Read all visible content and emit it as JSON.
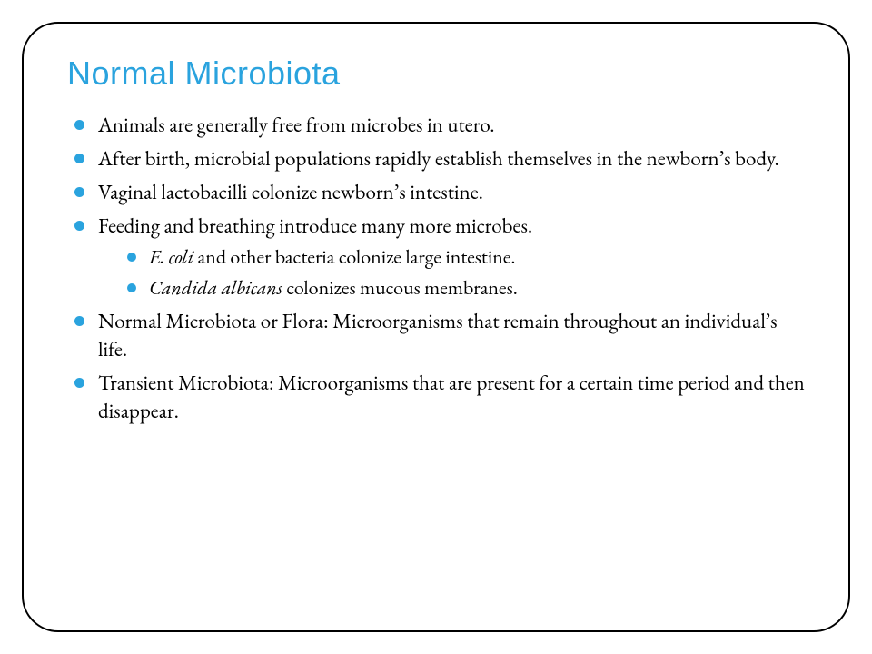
{
  "colors": {
    "accent": "#2aa3de",
    "text": "#000000",
    "border": "#000000",
    "background": "#ffffff"
  },
  "typography": {
    "title_fontsize": 36,
    "title_font": "Segoe UI, sans-serif",
    "body_fontsize": 23,
    "sub_fontsize": 22,
    "body_font": "Garamond, serif"
  },
  "layout": {
    "border_radius": 40,
    "frame_margin": 24,
    "bullet_size": 11
  },
  "slide": {
    "title": "Normal Microbiota",
    "bullets": {
      "b0": "Animals are generally free from microbes in utero.",
      "b1": "After birth, microbial populations rapidly establish themselves in the newborn’s body.",
      "b2": "Vaginal lactobacilli colonize newborn’s intestine.",
      "b3": "Feeding and breathing introduce many more microbes.",
      "b4": "Normal Microbiota or Flora:  Microorganisms that remain throughout an individual’s life.",
      "b5": "Transient Microbiota:  Microorganisms that are present for a certain time period and then disappear."
    },
    "sub_bullets": {
      "s0_italic": "E. coli",
      "s0_rest": " and other bacteria colonize large intestine.",
      "s1_italic": "Candida albicans",
      "s1_rest": " colonizes mucous membranes."
    }
  }
}
